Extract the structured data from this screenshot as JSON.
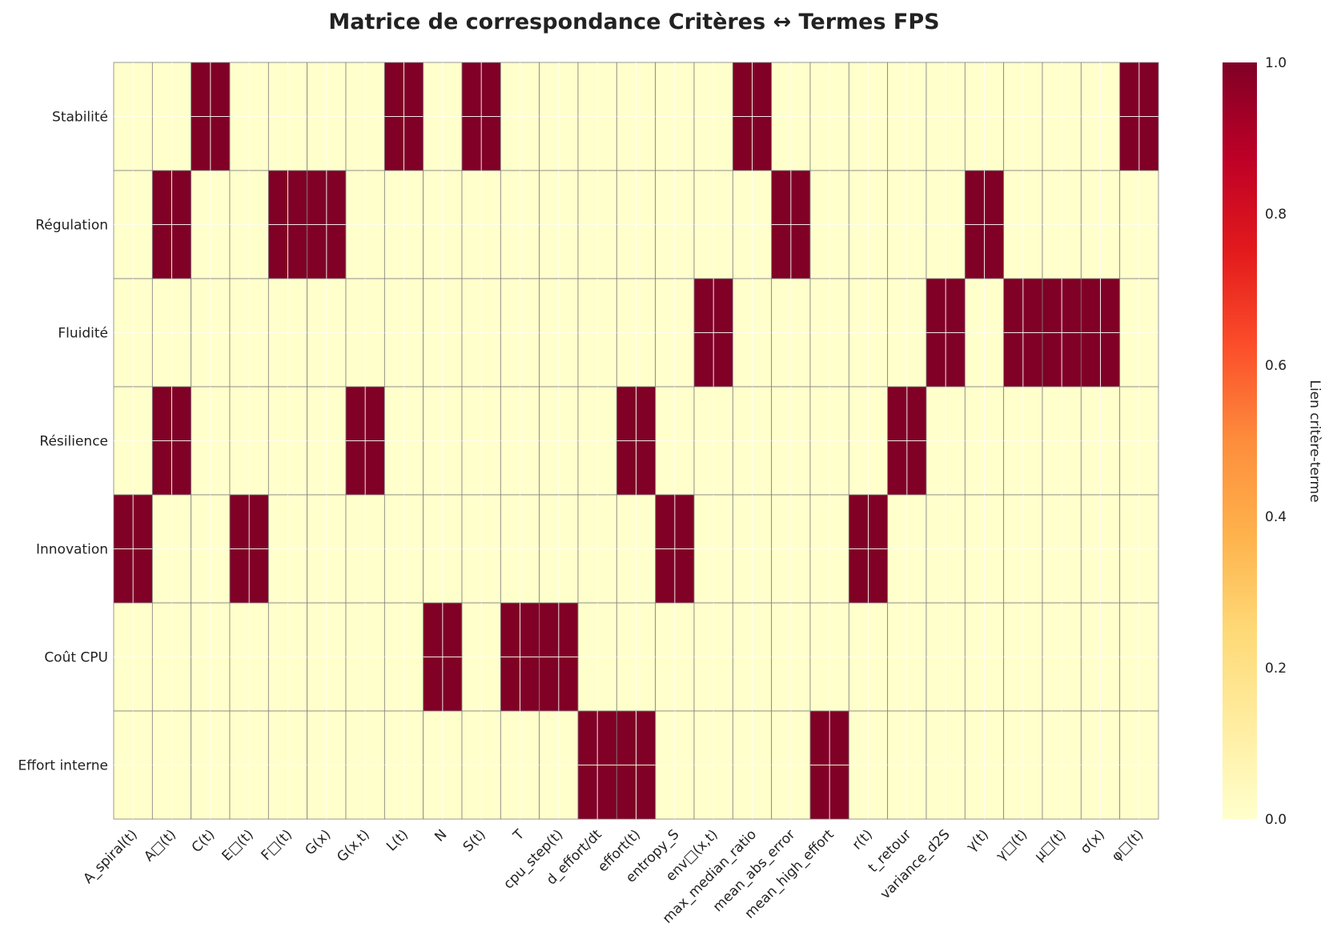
{
  "chart_data": {
    "type": "heatmap",
    "title": "Matrice de correspondance Critères ↔ Termes FPS",
    "rows": [
      "Stabilité",
      "Régulation",
      "Fluidité",
      "Résilience",
      "Innovation",
      "Coût CPU",
      "Effort interne"
    ],
    "columns": [
      "A_spiral(t)",
      "A□(t)",
      "C(t)",
      "E□(t)",
      "F□(t)",
      "G(x)",
      "G(x,t)",
      "L(t)",
      "N",
      "S(t)",
      "T",
      "cpu_step(t)",
      "d_effort/dt",
      "effort(t)",
      "entropy_S",
      "env□(x,t)",
      "max_median_ratio",
      "mean_abs_error",
      "mean_high_effort",
      "r(t)",
      "t_retour",
      "variance_d2S",
      "γ(t)",
      "γ□(t)",
      "μ□(t)",
      "σ(x)",
      "φ□(t)"
    ],
    "values": [
      [
        0,
        0,
        1,
        0,
        0,
        0,
        0,
        1,
        0,
        1,
        0,
        0,
        0,
        0,
        0,
        0,
        1,
        0,
        0,
        0,
        0,
        0,
        0,
        0,
        0,
        0,
        1
      ],
      [
        0,
        1,
        0,
        0,
        1,
        1,
        0,
        0,
        0,
        0,
        0,
        0,
        0,
        0,
        0,
        0,
        0,
        1,
        0,
        0,
        0,
        0,
        1,
        0,
        0,
        0,
        0
      ],
      [
        0,
        0,
        0,
        0,
        0,
        0,
        0,
        0,
        0,
        0,
        0,
        0,
        0,
        0,
        0,
        1,
        0,
        0,
        0,
        0,
        0,
        1,
        0,
        1,
        1,
        1,
        0
      ],
      [
        0,
        1,
        0,
        0,
        0,
        0,
        1,
        0,
        0,
        0,
        0,
        0,
        0,
        1,
        0,
        0,
        0,
        0,
        0,
        0,
        1,
        0,
        0,
        0,
        0,
        0,
        0
      ],
      [
        1,
        0,
        0,
        1,
        0,
        0,
        0,
        0,
        0,
        0,
        0,
        0,
        0,
        0,
        1,
        0,
        0,
        0,
        0,
        1,
        0,
        0,
        0,
        0,
        0,
        0,
        0
      ],
      [
        0,
        0,
        0,
        0,
        0,
        0,
        0,
        0,
        1,
        0,
        1,
        1,
        0,
        0,
        0,
        0,
        0,
        0,
        0,
        0,
        0,
        0,
        0,
        0,
        0,
        0,
        0
      ],
      [
        0,
        0,
        0,
        0,
        0,
        0,
        0,
        0,
        0,
        0,
        0,
        0,
        1,
        1,
        0,
        0,
        0,
        0,
        1,
        0,
        0,
        0,
        0,
        0,
        0,
        0,
        0
      ]
    ],
    "colormap": "YlOrRd",
    "vmin": 0,
    "vmax": 1,
    "colorbar": {
      "label": "Lien critère-terme",
      "ticks": [
        "0.0",
        "0.2",
        "0.4",
        "0.6",
        "0.8",
        "1.0"
      ]
    },
    "colors": {
      "low": "#ffffcc",
      "high": "#800026",
      "cell_border": "#808080"
    }
  }
}
